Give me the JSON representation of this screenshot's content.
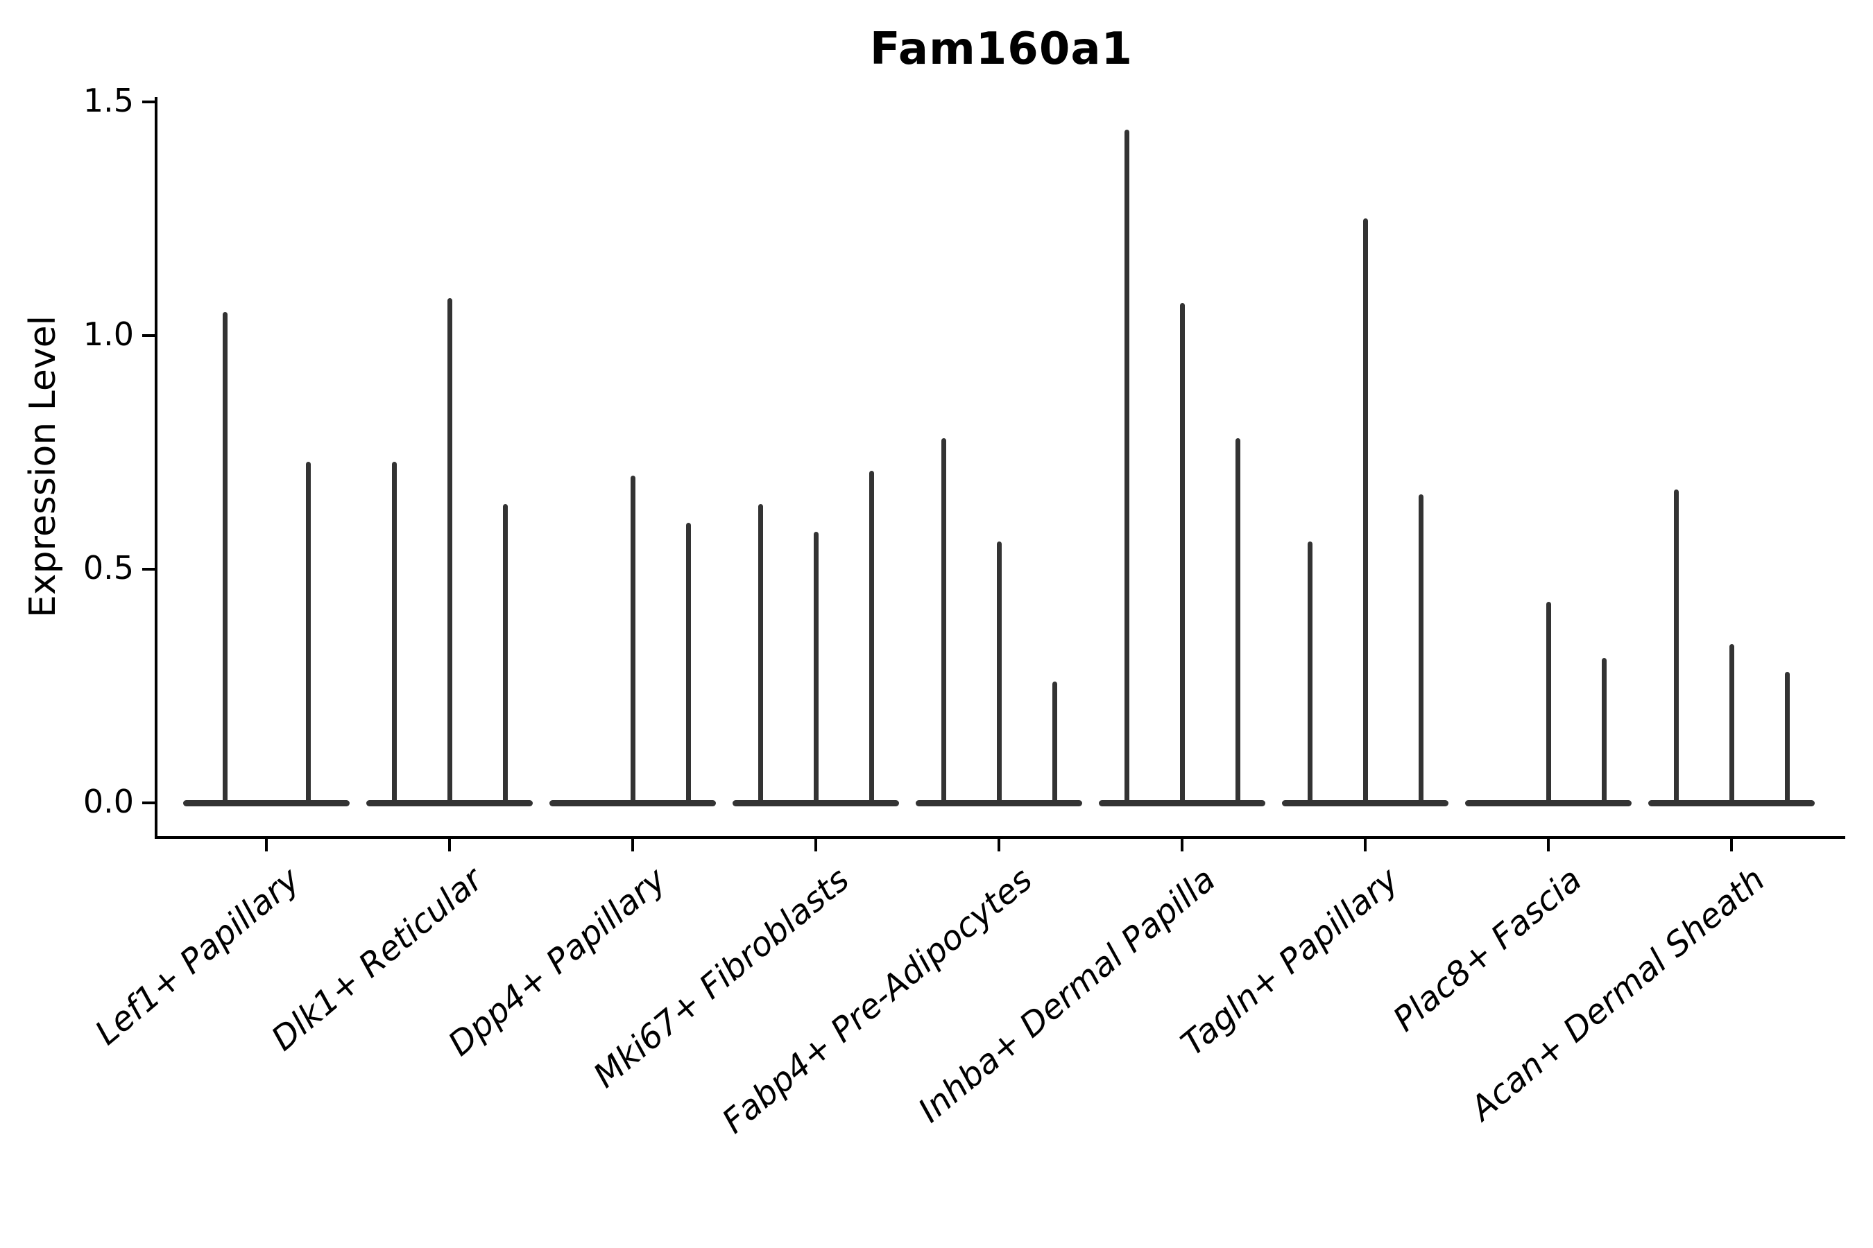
{
  "chart_data": {
    "type": "violin",
    "title": "Fam160a1",
    "xlabel": "",
    "ylabel": "Expression Level",
    "ylim": [
      -0.08,
      1.51
    ],
    "yticks": [
      0.0,
      0.5,
      1.0,
      1.5
    ],
    "ytick_labels": [
      "0.0",
      "0.5",
      "1.0",
      "1.5"
    ],
    "grid": false,
    "legend": "none",
    "violin_color": "#333333",
    "axis_color": "#000000",
    "groups": [
      {
        "label": "Lef1+ Papillary",
        "violin_max_values": [
          1.05,
          0.73
        ]
      },
      {
        "label": "Dlk1+ Reticular",
        "violin_max_values": [
          0.73,
          1.08,
          0.64
        ]
      },
      {
        "label": "Dpp4+ Papillary",
        "violin_max_values": [
          0.0,
          0.7,
          0.6
        ]
      },
      {
        "label": "Mki67+ Fibroblasts",
        "violin_max_values": [
          0.64,
          0.58,
          0.71
        ]
      },
      {
        "label": "Fabp4+ Pre-Adipocytes",
        "violin_max_values": [
          0.78,
          0.56,
          0.26
        ]
      },
      {
        "label": "Inhba+ Dermal Papilla",
        "violin_max_values": [
          1.44,
          1.07,
          0.78
        ]
      },
      {
        "label": "Tagln+ Papillary",
        "violin_max_values": [
          0.56,
          1.25,
          0.66
        ]
      },
      {
        "label": "Plac8+ Fascia",
        "violin_max_values": [
          0.0,
          0.43,
          0.31
        ]
      },
      {
        "label": "Acan+ Dermal Sheath",
        "violin_max_values": [
          0.67,
          0.34,
          0.28
        ]
      }
    ]
  }
}
